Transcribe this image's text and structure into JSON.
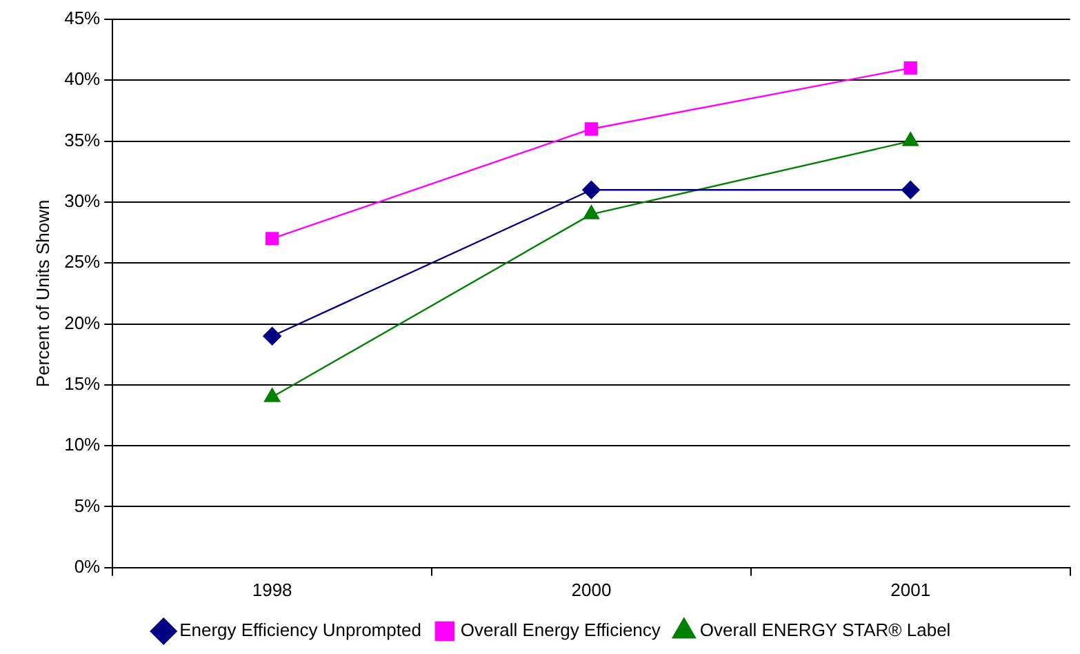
{
  "chart_data": {
    "type": "line",
    "ylabel": "Percent of Units Shown",
    "categories": [
      "1998",
      "2000",
      "2001"
    ],
    "series": [
      {
        "name": "Energy Efficiency Unprompted",
        "color": "#000080",
        "marker": "diamond",
        "values": [
          19,
          31,
          31
        ]
      },
      {
        "name": "Overall Energy Efficiency",
        "color": "#ff00ff",
        "marker": "square",
        "values": [
          27,
          36,
          41
        ]
      },
      {
        "name": "Overall ENERGY STAR® Label",
        "color": "#008000",
        "marker": "triangle",
        "values": [
          14,
          29,
          35
        ]
      }
    ],
    "ylim": [
      0,
      45
    ],
    "yticks": [
      {
        "value": 0,
        "label": "0%"
      },
      {
        "value": 5,
        "label": "5%"
      },
      {
        "value": 10,
        "label": "10%"
      },
      {
        "value": 15,
        "label": "15%"
      },
      {
        "value": 20,
        "label": "20%"
      },
      {
        "value": 25,
        "label": "25%"
      },
      {
        "value": 30,
        "label": "30%"
      },
      {
        "value": 35,
        "label": "35%"
      },
      {
        "value": 40,
        "label": "40%"
      },
      {
        "value": 45,
        "label": "45%"
      }
    ],
    "grid": "y",
    "legend": "bottom"
  }
}
